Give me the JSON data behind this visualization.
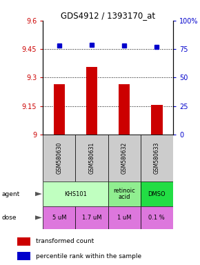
{
  "title": "GDS4912 / 1393170_at",
  "samples": [
    "GSM580630",
    "GSM580631",
    "GSM580632",
    "GSM580633"
  ],
  "bar_values": [
    9.265,
    9.355,
    9.265,
    9.155
  ],
  "bar_bottom": 9.0,
  "percentile_values": [
    78,
    79,
    78,
    77
  ],
  "ylim_left": [
    9.0,
    9.6
  ],
  "ylim_right": [
    0,
    100
  ],
  "yticks_left": [
    9.0,
    9.15,
    9.3,
    9.45,
    9.6
  ],
  "ytick_labels_left": [
    "9",
    "9.15",
    "9.3",
    "9.45",
    "9.6"
  ],
  "yticks_right": [
    0,
    25,
    50,
    75,
    100
  ],
  "ytick_labels_right": [
    "0",
    "25",
    "50",
    "75",
    "100%"
  ],
  "hlines": [
    9.15,
    9.3,
    9.45
  ],
  "bar_color": "#cc0000",
  "dot_color": "#0000cc",
  "agent_cells": [
    {
      "cols": [
        0,
        1
      ],
      "text": "KHS101",
      "color": "#c0ffc0"
    },
    {
      "cols": [
        2
      ],
      "text": "retinoic\nacid",
      "color": "#90ee90"
    },
    {
      "cols": [
        3
      ],
      "text": "DMSO",
      "color": "#22dd44"
    }
  ],
  "dose_labels": [
    "5 uM",
    "1.7 uM",
    "1 uM",
    "0.1 %"
  ],
  "dose_color": "#dd77dd",
  "sample_bg_color": "#cccccc",
  "legend_red": "transformed count",
  "legend_blue": "percentile rank within the sample"
}
